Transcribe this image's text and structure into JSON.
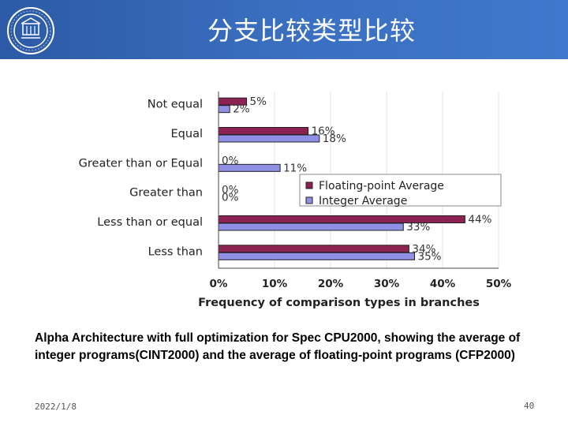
{
  "header": {
    "title": "分支比较类型比较",
    "logo_icon": "university-seal-icon",
    "color_start": "#2c5aa6",
    "color_end": "#3f78cc"
  },
  "chart_data": {
    "type": "bar",
    "orientation": "horizontal",
    "categories": [
      "Not equal",
      "Equal",
      "Greater than or Equal",
      "Greater than",
      "Less than or equal",
      "Less than"
    ],
    "series": [
      {
        "name": "Floating-point Average",
        "color": "#8b2252",
        "values": [
          5,
          16,
          0,
          0,
          44,
          34
        ],
        "labels": [
          "5%",
          "16%",
          "0%",
          "0%",
          "44%",
          "34%"
        ]
      },
      {
        "name": "Integer Average",
        "color": "#8f8fe6",
        "values": [
          2,
          18,
          11,
          0,
          33,
          35
        ],
        "labels": [
          "2%",
          "18%",
          "11%",
          "0%",
          "33%",
          "35%"
        ]
      }
    ],
    "xlabel": "Frequency of comparison types in branches",
    "xticks": [
      "0%",
      "10%",
      "20%",
      "30%",
      "40%",
      "50%"
    ],
    "xlim": [
      0,
      50
    ],
    "legend_position": "middle-right"
  },
  "caption": "Alpha Architecture with full optimization for Spec CPU2000, showing the average of integer programs(CINT2000) and the average of floating-point programs (CFP2000)",
  "footer": {
    "date": "2022/1/8",
    "page_number": "40"
  }
}
